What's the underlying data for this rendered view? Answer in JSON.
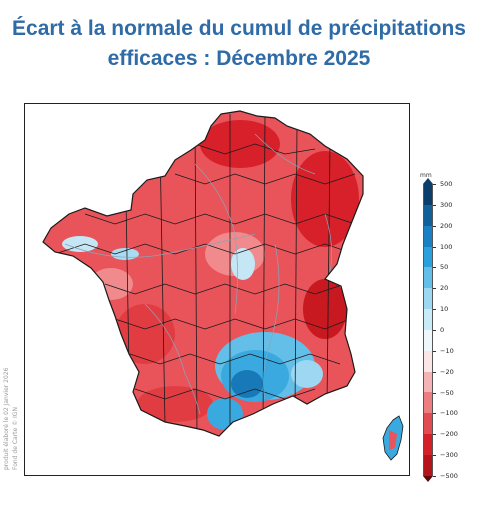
{
  "title": {
    "line1": "Écart à la normale du cumul de précipitations",
    "line2": "efficaces : Décembre 2025"
  },
  "map": {
    "credit_line1": "produit élaboré le 02 Janvier 2026",
    "credit_line2": "Fond de Carte © IGN",
    "colors": {
      "deficit_strong": "#d8202a",
      "deficit": "#e8545a",
      "deficit_light": "#f08a8c",
      "near_normal": "#f7d4d4",
      "excess_light": "#a7dcf2",
      "excess": "#3aa9df",
      "excess_strong": "#1779b8",
      "border": "#1a1a1a",
      "rivers": "#8aa4b8"
    }
  },
  "legend": {
    "unit": "mm",
    "ticks": [
      "500",
      "300",
      "200",
      "100",
      "50",
      "20",
      "10",
      "0",
      "−10",
      "−20",
      "−50",
      "−100",
      "−200",
      "−300",
      "−500"
    ],
    "colors": [
      "#0b3e6b",
      "#11609a",
      "#1a80c4",
      "#2aa0dc",
      "#63bfe8",
      "#9dd7f1",
      "#c9ebf7",
      "#eef7fb",
      "#fbe6e6",
      "#f4b3b4",
      "#ec7d80",
      "#e24b51",
      "#d42128",
      "#b5141b",
      "#8f0d12"
    ]
  }
}
